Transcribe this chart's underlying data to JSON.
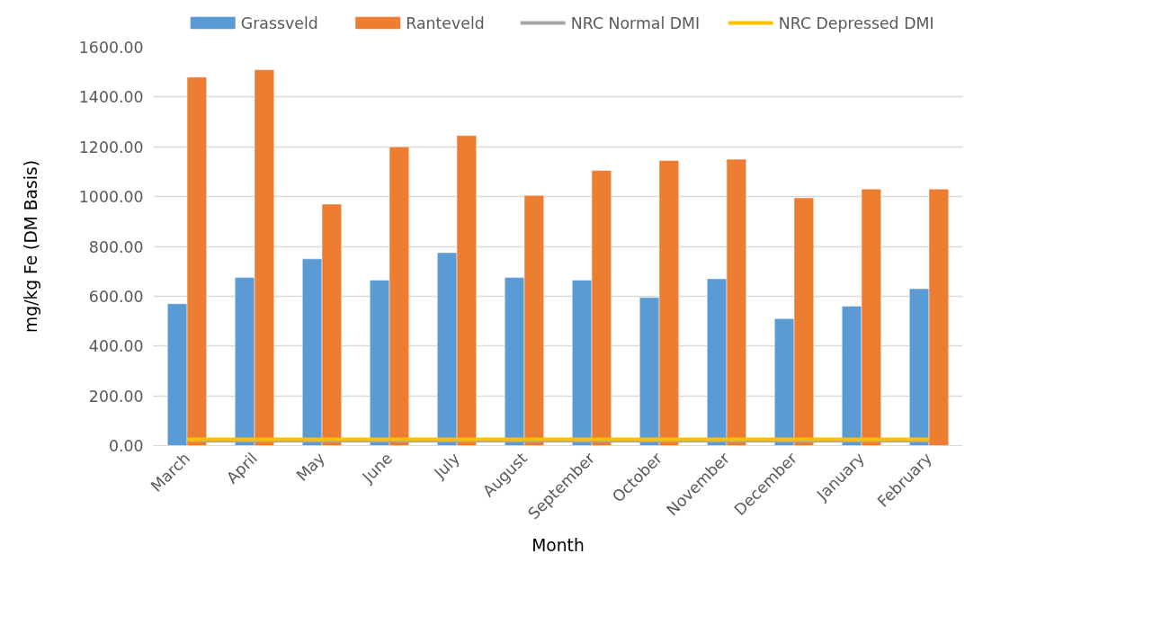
{
  "chart_data": {
    "type": "bar",
    "xlabel": "Month",
    "ylabel": "mg/kg Fe (DM Basis)",
    "categories": [
      "March",
      "April",
      "May",
      "June",
      "July",
      "August",
      "September",
      "October",
      "November",
      "December",
      "January",
      "February"
    ],
    "series": [
      {
        "name": "Grassveld",
        "color": "#5b9bd5",
        "values": [
          570,
          675,
          750,
          665,
          775,
          675,
          665,
          595,
          670,
          510,
          560,
          630
        ]
      },
      {
        "name": "Ranteveld",
        "color": "#ed7d31",
        "values": [
          1480,
          1510,
          970,
          1200,
          1245,
          1005,
          1105,
          1145,
          1150,
          995,
          1030,
          1030
        ]
      },
      {
        "name": "NRC Normal DMI",
        "type": "line",
        "color": "#a5a5a5",
        "values": [
          20,
          20,
          20,
          20,
          20,
          20,
          20,
          20,
          20,
          20,
          20,
          20
        ]
      },
      {
        "name": "NRC Depressed DMI",
        "type": "line",
        "color": "#ffc000",
        "values": [
          25,
          25,
          25,
          25,
          25,
          25,
          25,
          25,
          25,
          25,
          25,
          25
        ]
      }
    ],
    "ylim": [
      0,
      1600
    ],
    "yticks": [
      {
        "value": 0,
        "label": "0.00"
      },
      {
        "value": 200,
        "label": "200.00"
      },
      {
        "value": 400,
        "label": "400.00"
      },
      {
        "value": 600,
        "label": "600.00"
      },
      {
        "value": 800,
        "label": "800.00"
      },
      {
        "value": 1000,
        "label": "1000.00"
      },
      {
        "value": 1200,
        "label": "1200.00"
      },
      {
        "value": 1400,
        "label": "1400.00"
      },
      {
        "value": 1600,
        "label": "1600.00"
      }
    ],
    "grid": "y",
    "legend": "top"
  }
}
